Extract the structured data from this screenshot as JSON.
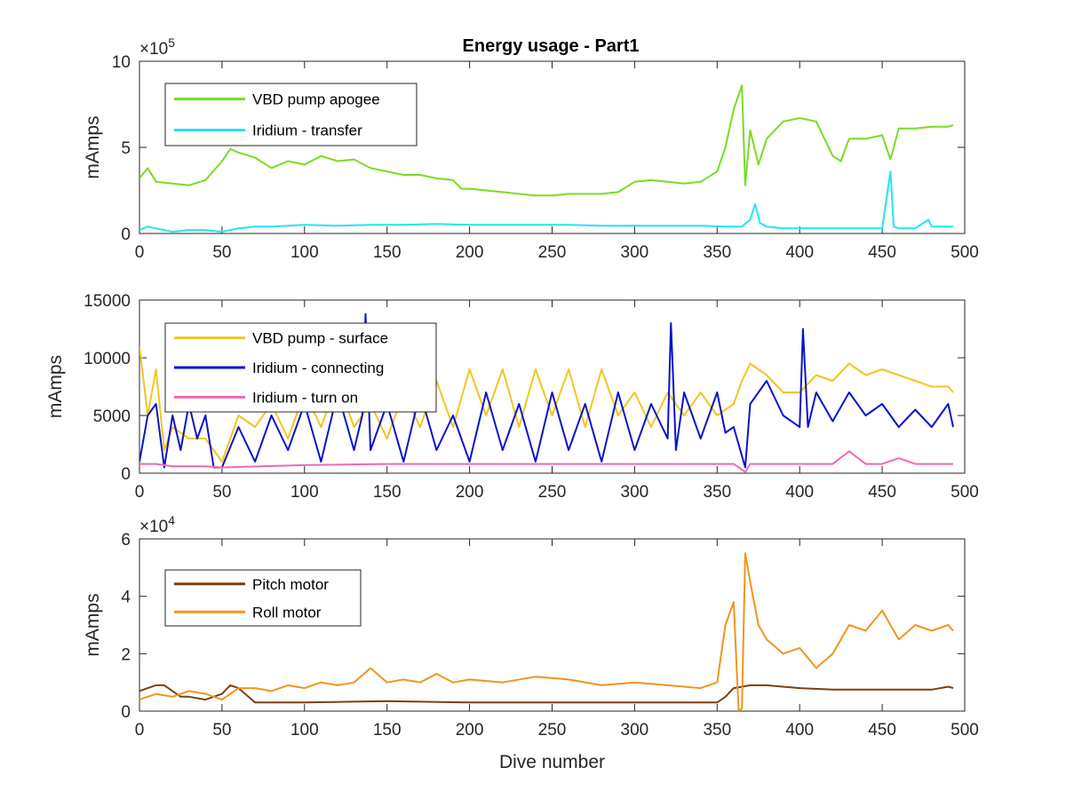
{
  "figure": {
    "title": "Energy usage - Part1"
  },
  "chart_data": [
    {
      "type": "line",
      "title": "Energy usage - Part1",
      "xlabel": "",
      "ylabel": "mAmps",
      "xlim": [
        0,
        500
      ],
      "ylim": [
        0,
        1000000
      ],
      "xticks": [
        0,
        50,
        100,
        150,
        200,
        250,
        300,
        350,
        400,
        450,
        500
      ],
      "yticks": [
        0,
        500000,
        1000000
      ],
      "ytick_labels": [
        "0",
        "5",
        "10"
      ],
      "exponent_label": "×10",
      "exponent_power": "5",
      "legend_position": "top-left",
      "grid": false,
      "series": [
        {
          "name": "VBD pump apogee",
          "color": "#77DD22",
          "x": [
            0,
            5,
            10,
            20,
            30,
            40,
            50,
            55,
            60,
            70,
            80,
            90,
            100,
            110,
            120,
            130,
            140,
            150,
            160,
            170,
            180,
            190,
            195,
            200,
            210,
            220,
            230,
            240,
            250,
            260,
            270,
            280,
            290,
            300,
            310,
            320,
            330,
            340,
            350,
            355,
            360,
            365,
            367,
            370,
            375,
            380,
            390,
            400,
            410,
            420,
            425,
            430,
            440,
            450,
            455,
            460,
            470,
            480,
            490,
            493
          ],
          "values": [
            320000,
            380000,
            300000,
            290000,
            280000,
            310000,
            420000,
            490000,
            470000,
            440000,
            380000,
            420000,
            400000,
            450000,
            420000,
            430000,
            380000,
            360000,
            340000,
            340000,
            320000,
            310000,
            260000,
            260000,
            250000,
            240000,
            230000,
            220000,
            220000,
            230000,
            230000,
            230000,
            240000,
            300000,
            310000,
            300000,
            290000,
            300000,
            360000,
            500000,
            720000,
            860000,
            280000,
            600000,
            400000,
            550000,
            650000,
            670000,
            650000,
            450000,
            420000,
            550000,
            550000,
            570000,
            430000,
            610000,
            610000,
            620000,
            620000,
            630000
          ]
        },
        {
          "name": "Iridium - transfer",
          "color": "#22E5F0",
          "x": [
            0,
            5,
            10,
            20,
            30,
            40,
            50,
            60,
            70,
            80,
            100,
            120,
            140,
            160,
            180,
            200,
            220,
            240,
            260,
            280,
            300,
            320,
            340,
            355,
            365,
            370,
            373,
            376,
            380,
            390,
            400,
            420,
            440,
            450,
            455,
            457,
            460,
            470,
            478,
            480,
            490,
            493
          ],
          "values": [
            20000,
            40000,
            30000,
            10000,
            20000,
            20000,
            10000,
            30000,
            40000,
            40000,
            50000,
            45000,
            50000,
            50000,
            55000,
            50000,
            50000,
            50000,
            50000,
            45000,
            45000,
            45000,
            45000,
            40000,
            40000,
            80000,
            170000,
            60000,
            40000,
            30000,
            30000,
            30000,
            30000,
            30000,
            360000,
            40000,
            30000,
            30000,
            80000,
            40000,
            40000,
            40000
          ]
        }
      ]
    },
    {
      "type": "line",
      "title": "",
      "xlabel": "",
      "ylabel": "mAmps",
      "xlim": [
        0,
        500
      ],
      "ylim": [
        0,
        15000
      ],
      "xticks": [
        0,
        50,
        100,
        150,
        200,
        250,
        300,
        350,
        400,
        450,
        500
      ],
      "yticks": [
        0,
        5000,
        10000,
        15000
      ],
      "ytick_labels": [
        "0",
        "5000",
        "10000",
        "15000"
      ],
      "legend_position": "top-left",
      "grid": false,
      "series": [
        {
          "name": "VBD pump - surface",
          "color": "#F2C61F",
          "x": [
            0,
            5,
            10,
            15,
            20,
            30,
            40,
            50,
            60,
            70,
            80,
            90,
            100,
            110,
            120,
            130,
            140,
            150,
            160,
            170,
            180,
            190,
            200,
            210,
            220,
            230,
            240,
            250,
            260,
            270,
            280,
            290,
            300,
            310,
            320,
            330,
            340,
            350,
            360,
            365,
            370,
            380,
            390,
            400,
            410,
            420,
            430,
            440,
            450,
            460,
            470,
            480,
            490,
            493
          ],
          "values": [
            11000,
            5000,
            9000,
            2000,
            4000,
            3000,
            3000,
            1000,
            5000,
            4000,
            6000,
            3000,
            7000,
            4000,
            8000,
            4000,
            6000,
            3000,
            7000,
            4000,
            8000,
            4000,
            9000,
            5000,
            9000,
            4000,
            9000,
            5000,
            9000,
            4000,
            9000,
            5000,
            7000,
            4000,
            7000,
            5000,
            7000,
            5000,
            6000,
            8000,
            9500,
            8500,
            7000,
            7000,
            8500,
            8000,
            9500,
            8500,
            9000,
            8500,
            8000,
            7500,
            7500,
            7000
          ]
        },
        {
          "name": "Iridium - connecting",
          "color": "#0A14C8",
          "x": [
            0,
            5,
            10,
            15,
            20,
            25,
            30,
            35,
            40,
            45,
            50,
            60,
            70,
            80,
            90,
            100,
            110,
            120,
            130,
            135,
            137,
            140,
            150,
            160,
            170,
            180,
            190,
            200,
            210,
            220,
            230,
            240,
            250,
            260,
            270,
            280,
            290,
            300,
            310,
            320,
            322,
            325,
            330,
            340,
            350,
            355,
            360,
            367,
            370,
            380,
            390,
            400,
            402,
            405,
            410,
            420,
            430,
            440,
            450,
            460,
            470,
            480,
            490,
            493
          ],
          "values": [
            1000,
            5000,
            6000,
            500,
            5000,
            2000,
            6000,
            3000,
            5000,
            500,
            500,
            4000,
            1000,
            5000,
            2000,
            6000,
            1000,
            7000,
            2000,
            5000,
            13800,
            2000,
            6000,
            1000,
            7000,
            2000,
            5000,
            1000,
            7000,
            2000,
            6000,
            1000,
            7000,
            2000,
            6000,
            1000,
            7000,
            2000,
            6000,
            3000,
            13000,
            2000,
            7000,
            3000,
            7000,
            3500,
            4000,
            500,
            6000,
            8000,
            5000,
            4000,
            12500,
            4000,
            7000,
            4500,
            7000,
            5000,
            6000,
            4000,
            5500,
            4000,
            6000,
            4000
          ]
        },
        {
          "name": "Iridium - turn on",
          "color": "#EE6AB4",
          "x": [
            0,
            5,
            10,
            20,
            30,
            40,
            50,
            100,
            150,
            200,
            250,
            300,
            350,
            360,
            367,
            370,
            380,
            390,
            400,
            410,
            420,
            430,
            440,
            450,
            460,
            470,
            480,
            490,
            493
          ],
          "values": [
            800,
            800,
            800,
            600,
            600,
            600,
            500,
            700,
            800,
            800,
            800,
            800,
            800,
            800,
            100,
            800,
            800,
            800,
            800,
            800,
            800,
            1900,
            800,
            800,
            1300,
            800,
            800,
            800,
            800
          ]
        }
      ]
    },
    {
      "type": "line",
      "title": "",
      "xlabel": "Dive number",
      "ylabel": "mAmps",
      "xlim": [
        0,
        500
      ],
      "ylim": [
        0,
        60000
      ],
      "xticks": [
        0,
        50,
        100,
        150,
        200,
        250,
        300,
        350,
        400,
        450,
        500
      ],
      "yticks": [
        0,
        20000,
        40000,
        60000
      ],
      "ytick_labels": [
        "0",
        "2",
        "4",
        "6"
      ],
      "exponent_label": "×10",
      "exponent_power": "4",
      "legend_position": "top-left",
      "grid": false,
      "series": [
        {
          "name": "Pitch motor",
          "color": "#7B3F12",
          "x": [
            0,
            5,
            10,
            15,
            20,
            25,
            30,
            40,
            50,
            55,
            60,
            70,
            100,
            150,
            200,
            250,
            300,
            350,
            355,
            360,
            370,
            380,
            400,
            420,
            440,
            460,
            480,
            490,
            493
          ],
          "values": [
            7000,
            8000,
            9000,
            9000,
            7000,
            5000,
            5000,
            4000,
            6000,
            9000,
            8000,
            3000,
            3000,
            3500,
            3000,
            3000,
            3000,
            3000,
            5000,
            8000,
            9000,
            9000,
            8000,
            7500,
            7500,
            7500,
            7500,
            8500,
            8000
          ]
        },
        {
          "name": "Roll motor",
          "color": "#F2941B",
          "x": [
            0,
            10,
            20,
            30,
            40,
            50,
            60,
            70,
            80,
            90,
            100,
            110,
            120,
            130,
            140,
            150,
            160,
            170,
            180,
            190,
            200,
            220,
            240,
            260,
            280,
            300,
            320,
            340,
            350,
            355,
            360,
            363,
            365,
            367,
            370,
            375,
            380,
            390,
            400,
            410,
            420,
            430,
            440,
            450,
            460,
            470,
            480,
            490,
            493
          ],
          "values": [
            4000,
            6000,
            5000,
            7000,
            6000,
            4000,
            8000,
            8000,
            7000,
            9000,
            8000,
            10000,
            9000,
            10000,
            15000,
            10000,
            11000,
            10000,
            13000,
            10000,
            11000,
            10000,
            12000,
            11000,
            9000,
            10000,
            9000,
            8000,
            10000,
            30000,
            38000,
            0,
            1000,
            55000,
            45000,
            30000,
            25000,
            20000,
            22000,
            15000,
            20000,
            30000,
            28000,
            35000,
            25000,
            30000,
            28000,
            30000,
            28000
          ]
        }
      ]
    }
  ]
}
